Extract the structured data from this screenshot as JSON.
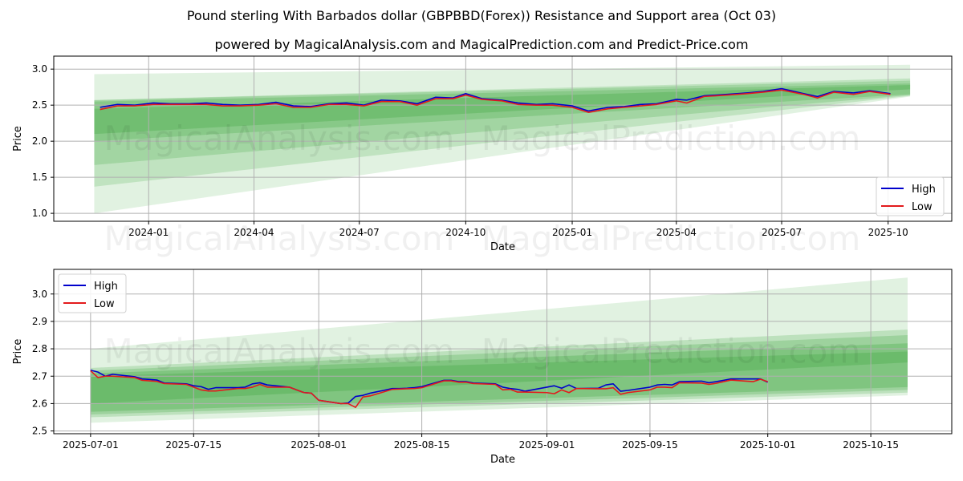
{
  "title": "Pound sterling With Barbados dollar (GBPBBD(Forex)) Resistance and Support area (Oct 03)",
  "subtitle": "powered by MagicalAnalysis.com and MagicalPrediction.com and Predict-Price.com",
  "watermarks": [
    "MagicalAnalysis.com",
    "MagicalPrediction.com"
  ],
  "colors": {
    "high": "#0000cc",
    "low": "#e31a1c",
    "band": "#2ca02c"
  },
  "chart_data": [
    {
      "type": "line",
      "xlabel": "Date",
      "ylabel": "Price",
      "xlim": [
        "2023-10-11",
        "2025-11-25"
      ],
      "ylim": [
        0.89,
        3.18
      ],
      "xticks": [
        "2024-01-01",
        "2024-04-01",
        "2024-07-01",
        "2024-10-01",
        "2025-01-01",
        "2025-04-01",
        "2025-07-01",
        "2025-10-01"
      ],
      "xtick_labels": [
        "2024-01",
        "2024-04",
        "2024-07",
        "2024-10",
        "2025-01",
        "2025-04",
        "2025-07",
        "2025-10"
      ],
      "yticks": [
        1.0,
        1.5,
        2.0,
        2.5,
        3.0
      ],
      "ytick_labels": [
        "1.0",
        "1.5",
        "2.0",
        "2.5",
        "3.0"
      ],
      "legend": {
        "position": "bottom-right",
        "entries": [
          "High",
          "Low"
        ]
      },
      "grid": true,
      "bands": {
        "start": "2023-11-15",
        "end": "2025-10-20",
        "layers": [
          {
            "start": [
              1.0,
              2.93
            ],
            "end": [
              2.62,
              3.06
            ],
            "opacity": 0.14
          },
          {
            "start": [
              1.37,
              2.57
            ],
            "end": [
              2.63,
              2.87
            ],
            "opacity": 0.18
          },
          {
            "start": [
              1.67,
              2.57
            ],
            "end": [
              2.64,
              2.84
            ],
            "opacity": 0.2
          },
          {
            "start": [
              2.0,
              2.55
            ],
            "end": [
              2.65,
              2.8
            ],
            "opacity": 0.22
          },
          {
            "start": [
              2.1,
              2.45
            ],
            "end": [
              2.72,
              2.78
            ],
            "opacity": 0.25
          }
        ]
      },
      "x": [
        "2023-11-20",
        "2023-12-05",
        "2023-12-20",
        "2024-01-05",
        "2024-01-20",
        "2024-02-05",
        "2024-02-20",
        "2024-03-05",
        "2024-03-20",
        "2024-04-05",
        "2024-04-20",
        "2024-05-05",
        "2024-05-20",
        "2024-06-05",
        "2024-06-20",
        "2024-07-05",
        "2024-07-20",
        "2024-08-05",
        "2024-08-20",
        "2024-09-05",
        "2024-09-20",
        "2024-10-01",
        "2024-10-15",
        "2024-11-01",
        "2024-11-15",
        "2024-12-01",
        "2024-12-15",
        "2025-01-01",
        "2025-01-15",
        "2025-02-01",
        "2025-02-15",
        "2025-03-01",
        "2025-03-15",
        "2025-04-01",
        "2025-04-10",
        "2025-04-25",
        "2025-05-15",
        "2025-06-01",
        "2025-06-15",
        "2025-07-01",
        "2025-07-20",
        "2025-08-01",
        "2025-08-15",
        "2025-09-01",
        "2025-09-15",
        "2025-10-03"
      ],
      "series": [
        {
          "name": "High",
          "values": [
            2.47,
            2.51,
            2.5,
            2.53,
            2.52,
            2.52,
            2.53,
            2.51,
            2.5,
            2.51,
            2.54,
            2.49,
            2.48,
            2.52,
            2.53,
            2.5,
            2.57,
            2.56,
            2.52,
            2.61,
            2.6,
            2.66,
            2.59,
            2.57,
            2.53,
            2.51,
            2.52,
            2.49,
            2.42,
            2.47,
            2.48,
            2.51,
            2.52,
            2.58,
            2.57,
            2.63,
            2.65,
            2.67,
            2.69,
            2.73,
            2.66,
            2.62,
            2.69,
            2.67,
            2.7,
            2.66
          ]
        },
        {
          "name": "Low",
          "values": [
            2.44,
            2.49,
            2.49,
            2.51,
            2.51,
            2.51,
            2.51,
            2.49,
            2.49,
            2.5,
            2.52,
            2.47,
            2.47,
            2.51,
            2.51,
            2.49,
            2.55,
            2.55,
            2.5,
            2.59,
            2.59,
            2.64,
            2.58,
            2.56,
            2.51,
            2.5,
            2.5,
            2.47,
            2.4,
            2.45,
            2.47,
            2.49,
            2.51,
            2.56,
            2.53,
            2.62,
            2.64,
            2.66,
            2.68,
            2.71,
            2.65,
            2.6,
            2.68,
            2.65,
            2.69,
            2.65
          ]
        }
      ]
    },
    {
      "type": "line",
      "xlabel": "Date",
      "ylabel": "Price",
      "xlim": [
        "2025-06-26",
        "2025-10-26"
      ],
      "ylim": [
        2.49,
        3.09
      ],
      "xticks": [
        "2025-07-01",
        "2025-07-15",
        "2025-08-01",
        "2025-08-15",
        "2025-09-01",
        "2025-09-15",
        "2025-10-01",
        "2025-10-15"
      ],
      "xtick_labels": [
        "2025-07-01",
        "2025-07-15",
        "2025-08-01",
        "2025-08-15",
        "2025-09-01",
        "2025-09-15",
        "2025-10-01",
        "2025-10-15"
      ],
      "yticks": [
        2.5,
        2.6,
        2.7,
        2.8,
        2.9,
        3.0
      ],
      "ytick_labels": [
        "2.5",
        "2.6",
        "2.7",
        "2.8",
        "2.9",
        "3.0"
      ],
      "legend": {
        "position": "top-left",
        "entries": [
          "High",
          "Low"
        ]
      },
      "grid": true,
      "bands": {
        "start": "2025-07-01",
        "end": "2025-10-20",
        "layers": [
          {
            "start": [
              2.53,
              2.8
            ],
            "end": [
              2.63,
              3.06
            ],
            "opacity": 0.14
          },
          {
            "start": [
              2.55,
              2.73
            ],
            "end": [
              2.64,
              2.87
            ],
            "opacity": 0.2
          },
          {
            "start": [
              2.56,
              2.72
            ],
            "end": [
              2.65,
              2.85
            ],
            "opacity": 0.22
          },
          {
            "start": [
              2.57,
              2.71
            ],
            "end": [
              2.66,
              2.82
            ],
            "opacity": 0.25
          },
          {
            "start": [
              2.6,
              2.7
            ],
            "end": [
              2.75,
              2.79
            ],
            "opacity": 0.25
          }
        ]
      },
      "x": [
        "2025-07-01",
        "2025-07-02",
        "2025-07-03",
        "2025-07-04",
        "2025-07-07",
        "2025-07-08",
        "2025-07-09",
        "2025-07-10",
        "2025-07-11",
        "2025-07-14",
        "2025-07-15",
        "2025-07-16",
        "2025-07-17",
        "2025-07-18",
        "2025-07-21",
        "2025-07-22",
        "2025-07-23",
        "2025-07-24",
        "2025-07-25",
        "2025-07-28",
        "2025-07-29",
        "2025-07-30",
        "2025-07-31",
        "2025-08-01",
        "2025-08-04",
        "2025-08-05",
        "2025-08-06",
        "2025-08-07",
        "2025-08-08",
        "2025-08-11",
        "2025-08-12",
        "2025-08-13",
        "2025-08-14",
        "2025-08-15",
        "2025-08-18",
        "2025-08-19",
        "2025-08-20",
        "2025-08-21",
        "2025-08-22",
        "2025-08-25",
        "2025-08-26",
        "2025-08-27",
        "2025-08-28",
        "2025-08-29",
        "2025-09-01",
        "2025-09-02",
        "2025-09-03",
        "2025-09-04",
        "2025-09-05",
        "2025-09-08",
        "2025-09-09",
        "2025-09-10",
        "2025-09-11",
        "2025-09-12",
        "2025-09-15",
        "2025-09-16",
        "2025-09-17",
        "2025-09-18",
        "2025-09-19",
        "2025-09-22",
        "2025-09-23",
        "2025-09-24",
        "2025-09-25",
        "2025-09-26",
        "2025-09-29",
        "2025-09-30",
        "2025-10-01"
      ],
      "series": [
        {
          "name": "High",
          "values": [
            2.722,
            2.715,
            2.7,
            2.707,
            2.698,
            2.69,
            2.688,
            2.686,
            2.675,
            2.672,
            2.665,
            2.662,
            2.652,
            2.658,
            2.658,
            2.66,
            2.672,
            2.676,
            2.668,
            2.66,
            2.65,
            2.64,
            2.638,
            2.612,
            2.6,
            2.602,
            2.626,
            2.63,
            2.638,
            2.655,
            2.655,
            2.656,
            2.658,
            2.662,
            2.685,
            2.685,
            2.68,
            2.68,
            2.675,
            2.672,
            2.66,
            2.655,
            2.652,
            2.645,
            2.66,
            2.665,
            2.656,
            2.668,
            2.655,
            2.656,
            2.668,
            2.672,
            2.645,
            2.648,
            2.66,
            2.668,
            2.67,
            2.668,
            2.68,
            2.682,
            2.676,
            2.68,
            2.685,
            2.69,
            2.69,
            2.69,
            2.678
          ]
        },
        {
          "name": "Low",
          "values": [
            2.72,
            2.695,
            2.7,
            2.7,
            2.695,
            2.685,
            2.683,
            2.681,
            2.673,
            2.67,
            2.66,
            2.65,
            2.646,
            2.646,
            2.655,
            2.655,
            2.66,
            2.67,
            2.66,
            2.66,
            2.65,
            2.64,
            2.638,
            2.612,
            2.6,
            2.6,
            2.586,
            2.624,
            2.628,
            2.652,
            2.653,
            2.654,
            2.655,
            2.658,
            2.683,
            2.683,
            2.678,
            2.678,
            2.673,
            2.67,
            2.65,
            2.652,
            2.642,
            2.642,
            2.64,
            2.636,
            2.65,
            2.64,
            2.655,
            2.654,
            2.654,
            2.658,
            2.634,
            2.64,
            2.65,
            2.66,
            2.66,
            2.658,
            2.676,
            2.675,
            2.67,
            2.674,
            2.68,
            2.686,
            2.68,
            2.689,
            2.68
          ]
        }
      ]
    }
  ]
}
